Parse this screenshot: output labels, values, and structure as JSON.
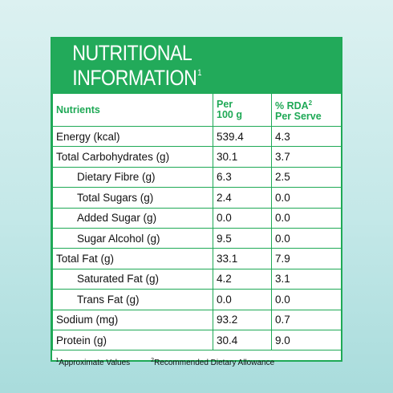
{
  "title": "NUTRITIONAL INFORMATION",
  "title_sup": "1",
  "columns": {
    "nutrients": "Nutrients",
    "per_line1": "Per",
    "per_line2": "100 g",
    "rda_line1": "% RDA",
    "rda_sup": "2",
    "rda_line2": "Per Serve"
  },
  "rows": [
    {
      "name": "Energy (kcal)",
      "per100": "539.4",
      "rda": "4.3"
    },
    {
      "name": "Total Carbohydrates (g)",
      "per100": "30.1",
      "rda": "3.7"
    },
    {
      "name": "Dietary Fibre (g)",
      "per100": "6.3",
      "rda": "2.5"
    },
    {
      "name": "Total Sugars (g)",
      "per100": "2.4",
      "rda": "0.0"
    },
    {
      "name": "Added Sugar (g)",
      "per100": "0.0",
      "rda": "0.0"
    },
    {
      "name": "Sugar Alcohol (g)",
      "per100": "9.5",
      "rda": "0.0"
    },
    {
      "name": "Total Fat (g)",
      "per100": "33.1",
      "rda": "7.9"
    },
    {
      "name": "Saturated Fat (g)",
      "per100": "4.2",
      "rda": "3.1"
    },
    {
      "name": "Trans Fat (g)",
      "per100": "0.0",
      "rda": "0.0"
    },
    {
      "name": "Sodium (mg)",
      "per100": "93.2",
      "rda": "0.7"
    },
    {
      "name": "Protein (g)",
      "per100": "30.4",
      "rda": "9.0"
    }
  ],
  "footnotes": {
    "fn1_mark": "1",
    "fn1_text": "Approximate Values",
    "fn2_mark": "2",
    "fn2_text": "Recommended Dietary Allowance"
  },
  "colors": {
    "accent": "#22aa5a",
    "background": "#c4e8e8"
  }
}
